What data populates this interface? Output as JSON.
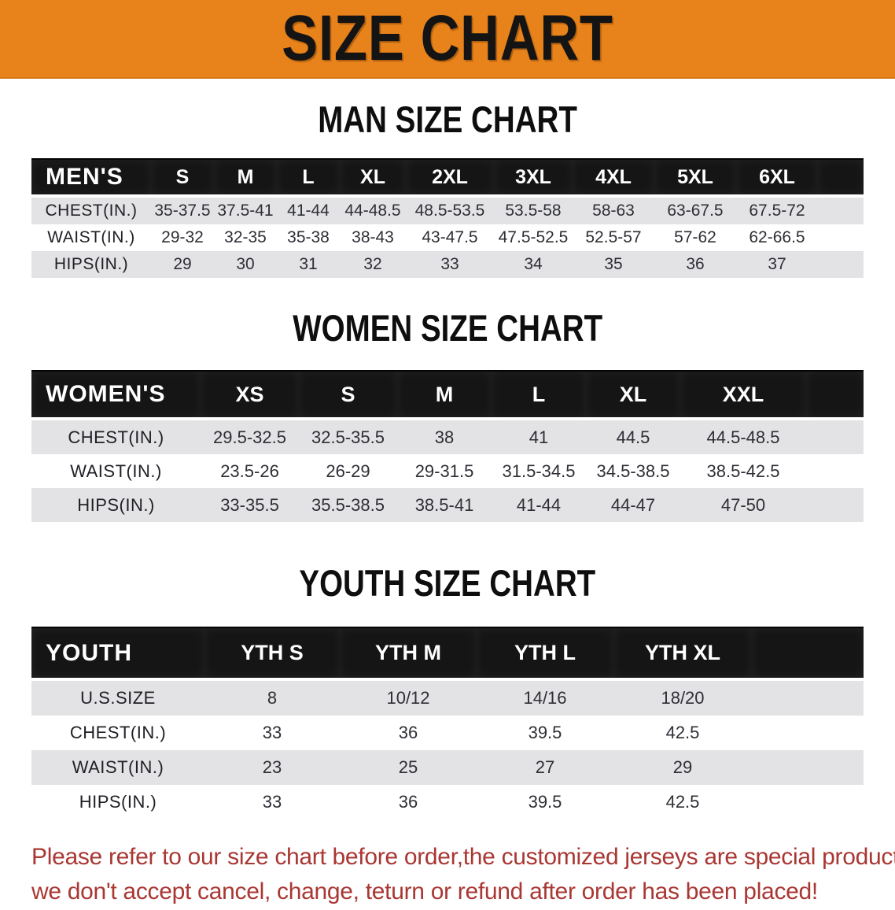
{
  "banner": {
    "title": "SIZE CHART",
    "bg_color": "#E8821A",
    "text_color": "#141414"
  },
  "sections": [
    {
      "heading": "MAN SIZE CHART",
      "table": {
        "header_label": "MEN'S",
        "columns": [
          "S",
          "M",
          "L",
          "XL",
          "2XL",
          "3XL",
          "4XL",
          "5XL",
          "6XL"
        ],
        "rows": [
          {
            "label": "CHEST(IN.)",
            "values": [
              "35-37.5",
              "37.5-41",
              "41-44",
              "44-48.5",
              "48.5-53.5",
              "53.5-58",
              "58-63",
              "63-67.5",
              "67.5-72"
            ]
          },
          {
            "label": "WAIST(IN.)",
            "values": [
              "29-32",
              "32-35",
              "35-38",
              "38-43",
              "43-47.5",
              "47.5-52.5",
              "52.5-57",
              "57-62",
              "62-66.5"
            ]
          },
          {
            "label": "HIPS(IN.)",
            "values": [
              "29",
              "30",
              "31",
              "32",
              "33",
              "34",
              "35",
              "36",
              "37"
            ]
          }
        ]
      }
    },
    {
      "heading": "WOMEN SIZE CHART",
      "table": {
        "header_label": "WOMEN'S",
        "columns": [
          "XS",
          "S",
          "M",
          "L",
          "XL",
          "XXL"
        ],
        "rows": [
          {
            "label": "CHEST(IN.)",
            "values": [
              "29.5-32.5",
              "32.5-35.5",
              "38",
              "41",
              "44.5",
              "44.5-48.5"
            ]
          },
          {
            "label": "WAIST(IN.)",
            "values": [
              "23.5-26",
              "26-29",
              "29-31.5",
              "31.5-34.5",
              "34.5-38.5",
              "38.5-42.5"
            ]
          },
          {
            "label": "HIPS(IN.)",
            "values": [
              "33-35.5",
              "35.5-38.5",
              "38.5-41",
              "41-44",
              "44-47",
              "47-50"
            ]
          }
        ]
      }
    },
    {
      "heading": "YOUTH SIZE CHART",
      "table": {
        "header_label": "YOUTH",
        "columns": [
          "YTH S",
          "YTH M",
          "YTH L",
          "YTH XL"
        ],
        "rows": [
          {
            "label": "U.S.SIZE",
            "values": [
              "8",
              "10/12",
              "14/16",
              "18/20"
            ]
          },
          {
            "label": "CHEST(IN.)",
            "values": [
              "33",
              "36",
              "39.5",
              "42.5"
            ]
          },
          {
            "label": "WAIST(IN.)",
            "values": [
              "23",
              "25",
              "27",
              "29"
            ]
          },
          {
            "label": "HIPS(IN.)",
            "values": [
              "33",
              "36",
              "39.5",
              "42.5"
            ]
          }
        ]
      }
    }
  ],
  "footer": {
    "line1": "Please refer to our size chart before order,the customized jerseys are special products,",
    "line2": "we don't accept cancel, change, teturn or refund after order has been placed!",
    "text_color": "#A93733"
  }
}
